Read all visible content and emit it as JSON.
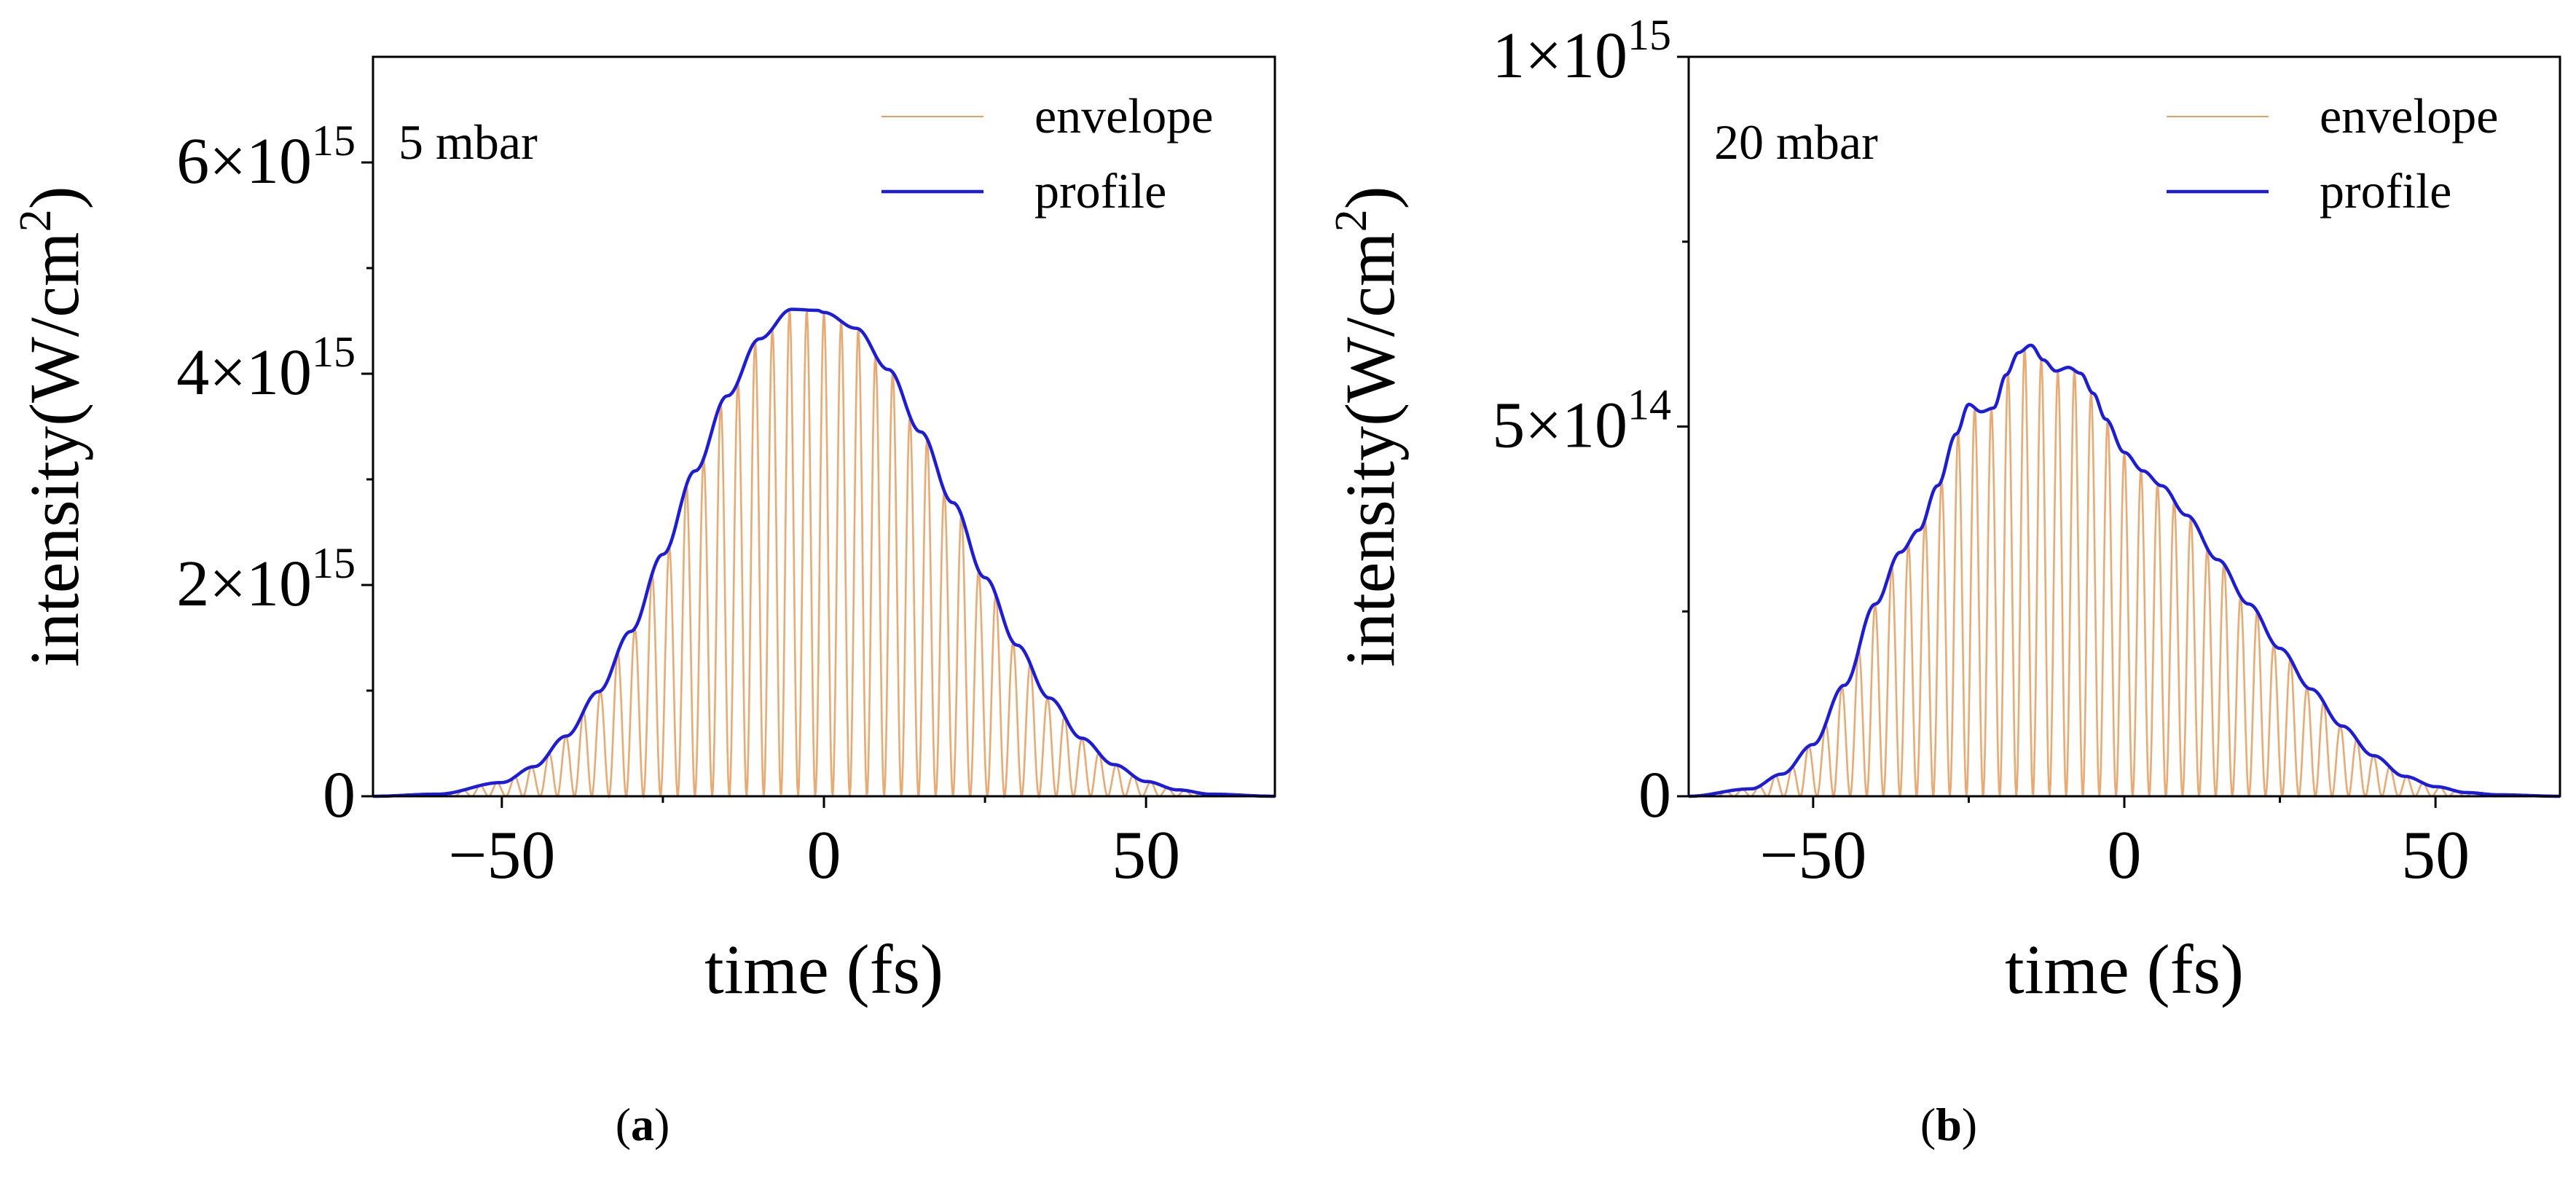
{
  "chart_data": [
    {
      "type": "line",
      "panel": "(a)",
      "panel_letter": "a",
      "annotation": "5 mbar",
      "xlabel": "time (fs)",
      "ylabel": "intensity(W/cm",
      "ylabel_sup": "2",
      "ylabel_close": ")",
      "xlim": [
        -70,
        70
      ],
      "ylim": [
        0,
        7000000000000000.0
      ],
      "x_ticks": [
        {
          "value": -50,
          "label": "−50"
        },
        {
          "value": 0,
          "label": "0"
        },
        {
          "value": 50,
          "label": "50"
        }
      ],
      "x_minor_ticks": [
        -25,
        25
      ],
      "y_ticks": [
        {
          "value": 0,
          "mantissa": "0",
          "exponent": ""
        },
        {
          "value": 2000000000000000.0,
          "mantissa": "2×10",
          "exponent": "15"
        },
        {
          "value": 4000000000000000.0,
          "mantissa": "4×10",
          "exponent": "15"
        },
        {
          "value": 6000000000000000.0,
          "mantissa": "6×10",
          "exponent": "15"
        }
      ],
      "y_minor_ticks": [
        1000000000000000.0,
        3000000000000000.0,
        5000000000000000.0
      ],
      "legend": {
        "position": "top-right",
        "entries": [
          {
            "label": "envelope",
            "color": "#e8a060"
          },
          {
            "label": "profile",
            "color": "#1c1cdc"
          }
        ]
      },
      "carrier_period_fs": 2.67,
      "series": [
        {
          "name": "envelope",
          "color": "#e8a060",
          "style": "oscillating fill under profile"
        },
        {
          "name": "profile",
          "color": "#1c1cdc",
          "x": [
            -70,
            -60,
            -50,
            -45,
            -40,
            -35,
            -30,
            -25,
            -20,
            -15,
            -10,
            -5,
            -1,
            0,
            5,
            10,
            15,
            20,
            25,
            30,
            35,
            40,
            45,
            50,
            55,
            60,
            70
          ],
          "y": [
            0,
            20000000000000.0,
            130000000000000.0,
            280000000000000.0,
            570000000000000.0,
            990000000000000.0,
            1560000000000000.0,
            2290000000000000.0,
            3080000000000000.0,
            3790000000000000.0,
            4330000000000000.0,
            4610000000000000.0,
            4600000000000000.0,
            4580000000000000.0,
            4430000000000000.0,
            4040000000000000.0,
            3450000000000000.0,
            2780000000000000.0,
            2070000000000000.0,
            1430000000000000.0,
            930000000000000.0,
            550000000000000.0,
            300000000000000.0,
            140000000000000.0,
            60000000000000.0,
            20000000000000.0,
            0
          ]
        }
      ]
    },
    {
      "type": "line",
      "panel": "(b)",
      "panel_letter": "b",
      "annotation": "20 mbar",
      "xlabel": "time (fs)",
      "ylabel": "intensity(W/cm",
      "ylabel_sup": "2",
      "ylabel_close": ")",
      "xlim": [
        -70,
        70
      ],
      "ylim": [
        0,
        1000000000000000.0
      ],
      "x_ticks": [
        {
          "value": -50,
          "label": "−50"
        },
        {
          "value": 0,
          "label": "0"
        },
        {
          "value": 50,
          "label": "50"
        }
      ],
      "x_minor_ticks": [
        -25,
        25
      ],
      "y_ticks": [
        {
          "value": 0,
          "mantissa": "0",
          "exponent": ""
        },
        {
          "value": 500000000000000.0,
          "mantissa": "5×10",
          "exponent": "14"
        },
        {
          "value": 1000000000000000.0,
          "mantissa": "1×10",
          "exponent": "15"
        }
      ],
      "y_minor_ticks": [
        250000000000000.0,
        750000000000000.0
      ],
      "legend": {
        "position": "top-right",
        "entries": [
          {
            "label": "envelope",
            "color": "#e8a060"
          },
          {
            "label": "profile",
            "color": "#1c1cdc"
          }
        ]
      },
      "carrier_period_fs": 2.67,
      "series": [
        {
          "name": "envelope",
          "color": "#e8a060",
          "style": "oscillating fill under profile"
        },
        {
          "name": "profile",
          "color": "#1c1cdc",
          "x": [
            -70,
            -60,
            -55,
            -50,
            -45,
            -40,
            -36,
            -33,
            -30,
            -27,
            -25,
            -23,
            -21,
            -19,
            -17,
            -15,
            -13,
            -11,
            -9,
            -7,
            -5,
            -3,
            0,
            3,
            6,
            10,
            15,
            20,
            25,
            30,
            35,
            40,
            45,
            50,
            55,
            60,
            70
          ],
          "y": [
            0,
            10000000000000.0,
            30000000000000.0,
            70000000000000.0,
            150000000000000.0,
            260000000000000.0,
            330000000000000.0,
            360000000000000.0,
            420000000000000.0,
            490000000000000.0,
            530000000000000.0,
            520000000000000.0,
            525000000000000.0,
            570000000000000.0,
            600000000000000.0,
            610000000000000.0,
            590000000000000.0,
            575000000000000.0,
            580000000000000.0,
            572000000000000.0,
            545000000000000.0,
            510000000000000.0,
            465000000000000.0,
            440000000000000.0,
            420000000000000.0,
            380000000000000.0,
            320000000000000.0,
            260000000000000.0,
            200000000000000.0,
            145000000000000.0,
            95000000000000.0,
            55000000000000.0,
            27000000000000.0,
            13000000000000.0,
            5000000000000.0,
            2000000000000.0,
            0
          ]
        }
      ]
    }
  ]
}
